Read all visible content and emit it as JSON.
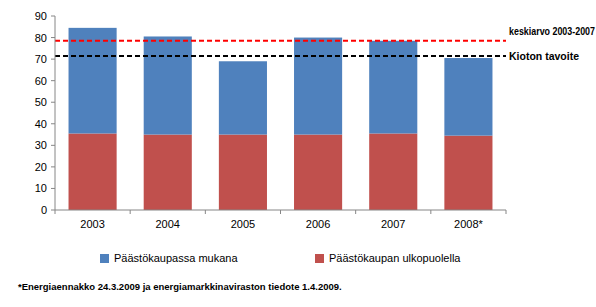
{
  "chart_data": {
    "type": "bar",
    "stacked": true,
    "grid": false,
    "legend": "bottom",
    "categories": [
      "2003",
      "2004",
      "2005",
      "2006",
      "2007",
      "2008*"
    ],
    "series": [
      {
        "name": "Päästökaupan ulkopuolella",
        "color": "#c0504d",
        "values": [
          35.5,
          35,
          35,
          35,
          35.5,
          34.5
        ]
      },
      {
        "name": "Päästökaupassa mukana",
        "color": "#4f81bd",
        "values": [
          49,
          45.5,
          34,
          45,
          43,
          36
        ]
      }
    ],
    "ylim": [
      0,
      90
    ],
    "yticks": [
      0,
      10,
      20,
      30,
      40,
      50,
      60,
      70,
      80,
      90
    ],
    "annotations": [
      {
        "label": "keskiarvo 2003-2007",
        "value": 78.5,
        "color": "#ff0000",
        "line_style": "dashed"
      },
      {
        "label": "Kioton tavoite",
        "value": 71.5,
        "color": "#000000",
        "line_style": "dashed"
      }
    ],
    "footnote": "*Energiaennakko 24.3.2009 ja energiamarkkinaviraston tiedote 1.4.2009."
  }
}
